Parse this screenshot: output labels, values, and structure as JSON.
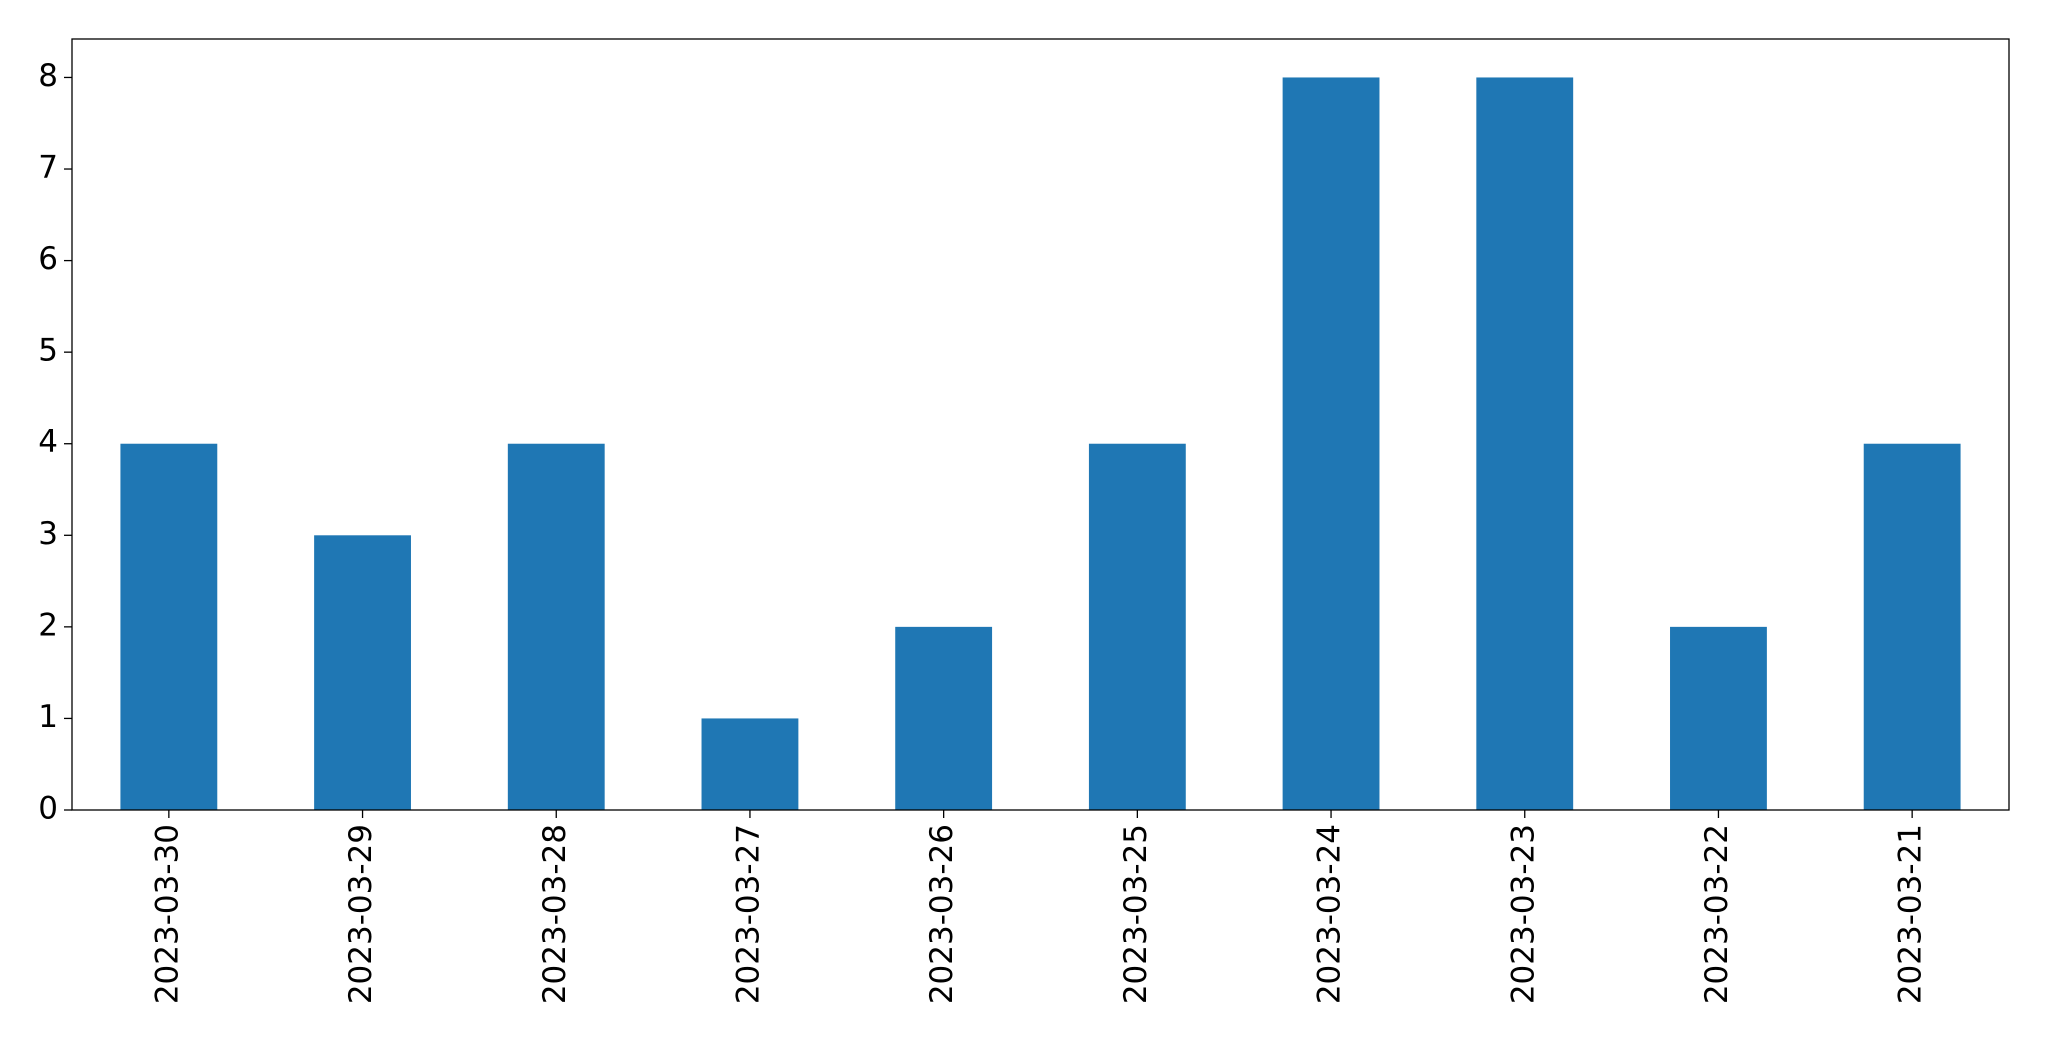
{
  "chart_data": {
    "type": "bar",
    "categories": [
      "2023-03-30",
      "2023-03-29",
      "2023-03-28",
      "2023-03-27",
      "2023-03-26",
      "2023-03-25",
      "2023-03-24",
      "2023-03-23",
      "2023-03-22",
      "2023-03-21"
    ],
    "values": [
      4,
      3,
      4,
      1,
      2,
      4,
      8,
      8,
      2,
      4
    ],
    "color": "#1f77b4",
    "ylim": [
      0,
      8.42
    ],
    "yticks": [
      0,
      1,
      2,
      3,
      4,
      5,
      6,
      7,
      8
    ],
    "grid": false
  }
}
